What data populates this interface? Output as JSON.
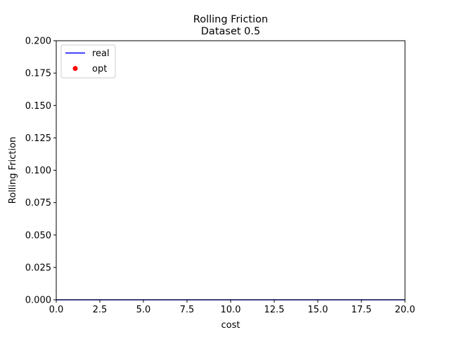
{
  "chart_data": {
    "type": "line",
    "title": "Rolling Friction",
    "subtitle": "Dataset 0.5",
    "xlabel": "cost",
    "ylabel": "Rolling Friction",
    "xlim": [
      0,
      20
    ],
    "ylim": [
      0,
      0.2
    ],
    "xticks": [
      0,
      2.5,
      5,
      7.5,
      10,
      12.5,
      15,
      17.5,
      20
    ],
    "xtick_labels": [
      "0.0",
      "2.5",
      "5.0",
      "7.5",
      "10.0",
      "12.5",
      "15.0",
      "17.5",
      "20.0"
    ],
    "yticks": [
      0,
      0.025,
      0.05,
      0.075,
      0.1,
      0.125,
      0.15,
      0.175,
      0.2
    ],
    "ytick_labels": [
      "0.000",
      "0.025",
      "0.050",
      "0.075",
      "0.100",
      "0.125",
      "0.150",
      "0.175",
      "0.200"
    ],
    "grid": false,
    "legend_placement": "top-left",
    "series": [
      {
        "name": "real",
        "kind": "line",
        "color": "#0000ff",
        "points": [
          [
            0,
            0
          ],
          [
            20,
            0
          ]
        ]
      },
      {
        "name": "opt",
        "kind": "scatter",
        "color": "#ff0000",
        "points": []
      }
    ]
  }
}
